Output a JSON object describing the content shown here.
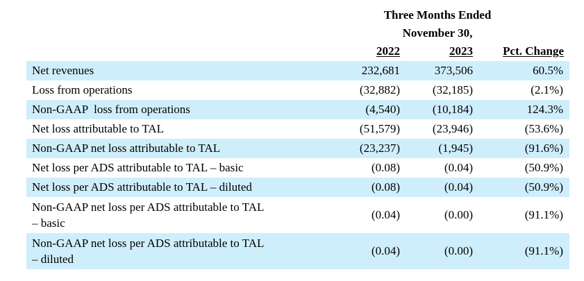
{
  "header": {
    "period_line1": "Three Months Ended",
    "period_line2": "November 30,",
    "col_2022": "2022",
    "col_2023": "2023",
    "col_pct": "Pct. Change"
  },
  "rows": [
    {
      "label": "Net revenues",
      "v2022": "232,681",
      "v2023": "373,506",
      "pct": "60.5%"
    },
    {
      "label": "Loss from operations",
      "v2022": "(32,882)",
      "v2023": "(32,185)",
      "pct": "(2.1%)"
    },
    {
      "label": "Non-GAAP  loss from operations",
      "v2022": "(4,540)",
      "v2023": "(10,184)",
      "pct": "124.3%"
    },
    {
      "label": "Net loss attributable to TAL",
      "v2022": "(51,579)",
      "v2023": "(23,946)",
      "pct": "(53.6%)"
    },
    {
      "label": "Non-GAAP net loss attributable to TAL",
      "v2022": "(23,237)",
      "v2023": "(1,945)",
      "pct": "(91.6%)"
    },
    {
      "label": "Net loss per ADS attributable to TAL – basic",
      "v2022": "(0.08)",
      "v2023": "(0.04)",
      "pct": "(50.9%)"
    },
    {
      "label": "Net loss per ADS attributable to TAL – diluted",
      "v2022": "(0.08)",
      "v2023": "(0.04)",
      "pct": "(50.9%)"
    },
    {
      "label_line1": "Non-GAAP net loss per ADS attributable to TAL",
      "label_line2": "– basic",
      "v2022": "(0.04)",
      "v2023": "(0.00)",
      "pct": "(91.1%)"
    },
    {
      "label_line1": "Non-GAAP net loss per ADS attributable to TAL",
      "label_line2": "– diluted",
      "v2022": "(0.04)",
      "v2023": "(0.00)",
      "pct": "(91.1%)"
    }
  ],
  "colors": {
    "row_shade": "#cfeefb",
    "text": "#000000"
  }
}
